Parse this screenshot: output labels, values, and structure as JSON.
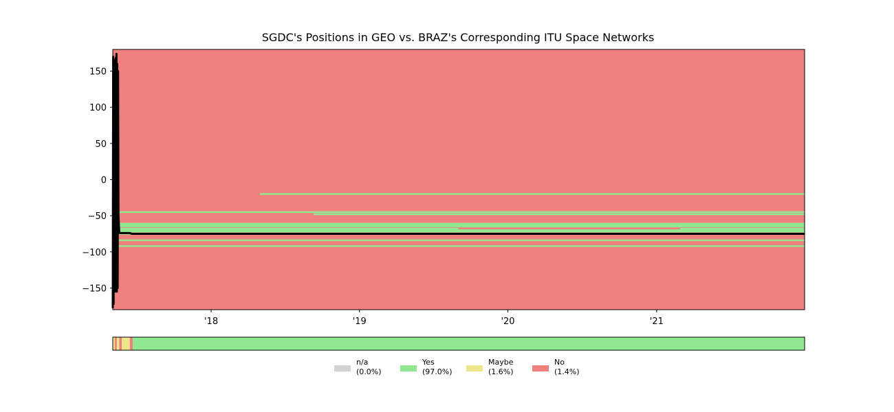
{
  "chart_data": {
    "type": "area",
    "title": "SGDC's Positions in GEO vs. BRAZ's Corresponding ITU Space Networks",
    "xlabel": "",
    "ylabel": "",
    "xlim": [
      "2017-05-04",
      "2021-12-31"
    ],
    "ylim": [
      -180,
      180
    ],
    "xticks": [
      {
        "label": "'18",
        "date": "2018-01-01"
      },
      {
        "label": "'19",
        "date": "2019-01-01"
      },
      {
        "label": "'20",
        "date": "2020-01-01"
      },
      {
        "label": "'21",
        "date": "2021-01-01"
      }
    ],
    "yticks": [
      150,
      100,
      50,
      0,
      -50,
      -100,
      -150
    ],
    "grid": false,
    "colors": {
      "n/a": "#d3d3d3",
      "Yes": "#90e890",
      "Maybe": "#ede68a",
      "No": "#f0807e",
      "position": "#000000"
    },
    "background_status": "No",
    "itu_network_lines": [
      {
        "longitude": -20,
        "start": "2018-05-01",
        "end": "2021-12-31",
        "status": "Yes"
      },
      {
        "longitude": -45,
        "start": "2017-05-08",
        "end": "2021-12-31",
        "status": "Yes"
      },
      {
        "longitude": -48,
        "start": "2017-05-08",
        "end": "2018-09-10",
        "status": "No"
      },
      {
        "longitude": -48,
        "start": "2018-09-10",
        "end": "2021-12-31",
        "status": "Yes"
      },
      {
        "longitude": -61,
        "start": "2017-05-08",
        "end": "2021-12-31",
        "status": "Yes"
      },
      {
        "longitude": -63,
        "start": "2017-05-08",
        "end": "2021-12-31",
        "status": "Yes"
      },
      {
        "longitude": -65,
        "start": "2017-05-08",
        "end": "2021-12-31",
        "status": "Yes"
      },
      {
        "longitude": -68,
        "start": "2017-05-08",
        "end": "2021-12-31",
        "status": "Yes"
      },
      {
        "longitude": -68,
        "start": "2019-09-01",
        "end": "2021-02-28",
        "status": "No"
      },
      {
        "longitude": -70,
        "start": "2017-05-08",
        "end": "2021-12-31",
        "status": "Yes"
      },
      {
        "longitude": -72,
        "start": "2017-05-08",
        "end": "2021-12-31",
        "status": "Yes"
      },
      {
        "longitude": -75,
        "start": "2017-05-08",
        "end": "2021-12-31",
        "status": "Yes"
      },
      {
        "longitude": -84,
        "start": "2017-05-08",
        "end": "2021-12-31",
        "status": "Yes"
      },
      {
        "longitude": -92,
        "start": "2017-05-08",
        "end": "2021-12-31",
        "status": "Yes"
      }
    ],
    "series": [
      {
        "values": [
          {
            "date": "2017-05-04",
            "longitude": -178
          },
          {
            "date": "2017-05-05",
            "longitude": 170
          },
          {
            "date": "2017-05-06",
            "longitude": -172
          },
          {
            "date": "2017-05-07",
            "longitude": 165
          },
          {
            "date": "2017-05-08",
            "longitude": -155
          },
          {
            "date": "2017-05-09",
            "longitude": 160
          },
          {
            "date": "2017-05-10",
            "longitude": -150
          },
          {
            "date": "2017-05-11",
            "longitude": 168
          },
          {
            "date": "2017-05-12",
            "longitude": -155
          },
          {
            "date": "2017-05-13",
            "longitude": 174
          },
          {
            "date": "2017-05-14",
            "longitude": -155
          },
          {
            "date": "2017-05-15",
            "longitude": 160
          },
          {
            "date": "2017-05-16",
            "longitude": -150
          },
          {
            "date": "2017-05-17",
            "longitude": 150
          },
          {
            "date": "2017-05-18",
            "longitude": -50
          },
          {
            "date": "2017-05-20",
            "longitude": -74
          },
          {
            "date": "2017-06-15",
            "longitude": -74
          },
          {
            "date": "2017-06-20",
            "longitude": -75
          },
          {
            "date": "2021-12-31",
            "longitude": -75
          }
        ]
      }
    ],
    "status_bar": [
      {
        "start": "2017-05-04",
        "end": "2017-05-09",
        "status": "Maybe"
      },
      {
        "start": "2017-05-09",
        "end": "2017-05-14",
        "status": "No"
      },
      {
        "start": "2017-05-14",
        "end": "2017-05-20",
        "status": "Maybe"
      },
      {
        "start": "2017-05-20",
        "end": "2017-05-26",
        "status": "No"
      },
      {
        "start": "2017-05-26",
        "end": "2017-06-15",
        "status": "Maybe"
      },
      {
        "start": "2017-06-15",
        "end": "2017-06-22",
        "status": "No"
      },
      {
        "start": "2017-06-22",
        "end": "2021-12-31",
        "status": "Yes"
      }
    ],
    "legend": [
      {
        "key": "n/a",
        "label": "n/a",
        "pct": "(0.0%)"
      },
      {
        "key": "Yes",
        "label": "Yes",
        "pct": "(97.0%)"
      },
      {
        "key": "Maybe",
        "label": "Maybe",
        "pct": "(1.6%)"
      },
      {
        "key": "No",
        "label": "No",
        "pct": "(1.4%)"
      }
    ],
    "legend_placement": "bottom-center"
  }
}
